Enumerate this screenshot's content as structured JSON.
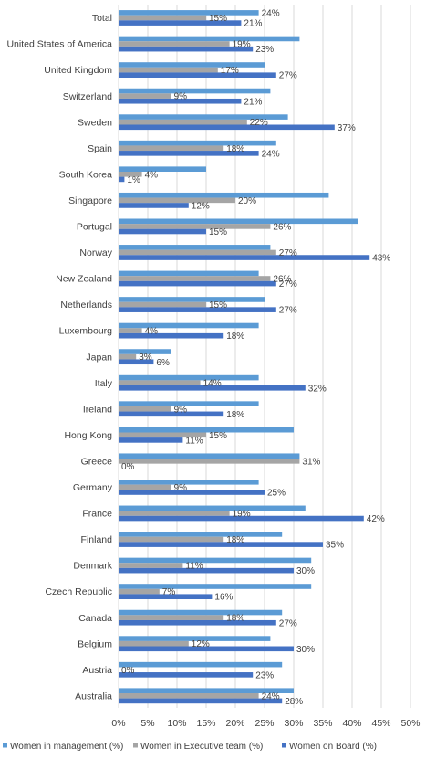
{
  "chart_data": {
    "type": "bar",
    "orientation": "horizontal",
    "categories": [
      "Total",
      "United States of America",
      "United Kingdom",
      "Switzerland",
      "Sweden",
      "Spain",
      "South Korea",
      "Singapore",
      "Portugal",
      "Norway",
      "New Zealand",
      "Netherlands",
      "Luxembourg",
      "Japan",
      "Italy",
      "Ireland",
      "Hong Kong",
      "Greece",
      "Germany",
      "France",
      "Finland",
      "Denmark",
      "Czech Republic",
      "Canada",
      "Belgium",
      "Austria",
      "Australia"
    ],
    "series": [
      {
        "name": "Women in management (%)",
        "color": "#5b9bd5",
        "values": [
          24,
          31,
          25,
          26,
          29,
          27,
          15,
          36,
          41,
          26,
          24,
          25,
          24,
          9,
          24,
          24,
          30,
          31,
          24,
          32,
          28,
          33,
          33,
          28,
          26,
          28,
          30
        ],
        "labels": [
          "24%",
          null,
          null,
          null,
          null,
          null,
          null,
          null,
          null,
          null,
          null,
          null,
          null,
          null,
          null,
          null,
          null,
          null,
          null,
          null,
          null,
          null,
          null,
          null,
          null,
          null,
          null
        ]
      },
      {
        "name": "Women in Executive team (%)",
        "color": "#a5a5a5",
        "values": [
          15,
          19,
          17,
          9,
          22,
          18,
          4,
          20,
          26,
          27,
          26,
          15,
          4,
          3,
          14,
          9,
          15,
          31,
          9,
          19,
          18,
          11,
          7,
          18,
          12,
          0,
          24
        ],
        "labels": [
          "15%",
          "19%",
          "17%",
          "9%",
          "22%",
          "18%",
          "4%",
          "20%",
          "26%",
          "27%",
          "26%",
          "15%",
          "4%",
          "3%",
          "14%",
          "9%",
          "15%",
          "31%",
          "9%",
          "19%",
          "18%",
          "11%",
          "7%",
          "18%",
          "12%",
          "0%",
          "24%"
        ]
      },
      {
        "name": "Women on Board (%)",
        "color": "#4472c4",
        "values": [
          21,
          23,
          27,
          21,
          37,
          24,
          1,
          12,
          15,
          43,
          27,
          27,
          18,
          6,
          32,
          18,
          11,
          0,
          25,
          42,
          35,
          30,
          16,
          27,
          30,
          23,
          28
        ],
        "labels": [
          "21%",
          "23%",
          "27%",
          "21%",
          "37%",
          "24%",
          "1%",
          "12%",
          "15%",
          "43%",
          "27%",
          "27%",
          "18%",
          "6%",
          "32%",
          "18%",
          "11%",
          "0%",
          "25%",
          "42%",
          "35%",
          "30%",
          "16%",
          "27%",
          "30%",
          "23%",
          "28%"
        ]
      }
    ],
    "xlim": [
      0,
      50
    ],
    "xticks": [
      "0%",
      "5%",
      "10%",
      "15%",
      "20%",
      "25%",
      "30%",
      "35%",
      "40%",
      "45%",
      "50%"
    ],
    "grid": true,
    "legend": "bottom",
    "title": "",
    "xlabel": "",
    "ylabel": ""
  }
}
